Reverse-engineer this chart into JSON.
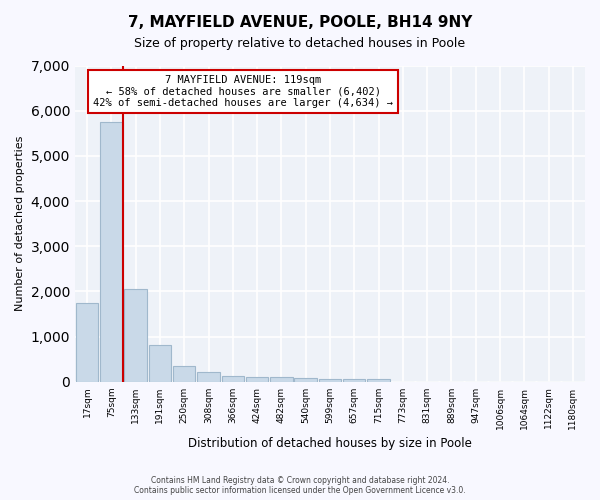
{
  "title": "7, MAYFIELD AVENUE, POOLE, BH14 9NY",
  "subtitle": "Size of property relative to detached houses in Poole",
  "xlabel": "Distribution of detached houses by size in Poole",
  "ylabel": "Number of detached properties",
  "bin_labels": [
    "17sqm",
    "75sqm",
    "133sqm",
    "191sqm",
    "250sqm",
    "308sqm",
    "366sqm",
    "424sqm",
    "482sqm",
    "540sqm",
    "599sqm",
    "657sqm",
    "715sqm",
    "773sqm",
    "831sqm",
    "889sqm",
    "947sqm",
    "1006sqm",
    "1064sqm",
    "1122sqm",
    "1180sqm"
  ],
  "bar_heights": [
    1750,
    5750,
    2050,
    820,
    350,
    210,
    130,
    100,
    100,
    80,
    70,
    50,
    60,
    0,
    0,
    0,
    0,
    0,
    0,
    0,
    0
  ],
  "bar_color": "#c9d9e8",
  "bar_edge_color": "#a0b8cc",
  "annotation_title": "7 MAYFIELD AVENUE: 119sqm",
  "annotation_line1": "← 58% of detached houses are smaller (6,402)",
  "annotation_line2": "42% of semi-detached houses are larger (4,634) →",
  "annotation_box_color": "#ffffff",
  "annotation_box_edge": "#cc0000",
  "red_line_color": "#cc0000",
  "red_line_x": 1.5,
  "background_color": "#eef2f8",
  "grid_color": "#ffffff",
  "ylim": [
    0,
    7000
  ],
  "yticks": [
    0,
    1000,
    2000,
    3000,
    4000,
    5000,
    6000,
    7000
  ],
  "footer_line1": "Contains HM Land Registry data © Crown copyright and database right 2024.",
  "footer_line2": "Contains public sector information licensed under the Open Government Licence v3.0."
}
